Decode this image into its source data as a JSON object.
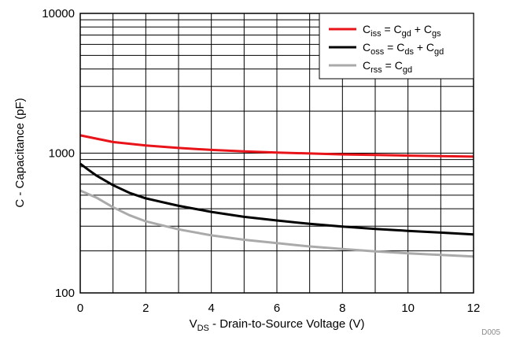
{
  "chart_data": {
    "type": "line",
    "title": "",
    "xlabel": {
      "main": "V",
      "sub": "DS",
      "rest": " - Drain-to-Source Voltage (V)"
    },
    "ylabel": "C - Capacitance (pF)",
    "xlim": [
      0,
      12
    ],
    "ylim": [
      100,
      10000
    ],
    "yscale": "log",
    "grid": true,
    "legend_position": "top-right",
    "x_ticks": [
      "0",
      "2",
      "4",
      "6",
      "8",
      "10",
      "12"
    ],
    "y_ticks": [
      "100",
      "1000",
      "10000"
    ],
    "figure_id": "D005",
    "series": [
      {
        "name": "Ciss = Cgd + Cgs",
        "legend": [
          [
            "C",
            ""
          ],
          [
            "iss",
            "sub"
          ],
          [
            " = C",
            ""
          ],
          [
            "gd",
            "sub"
          ],
          [
            " + C",
            ""
          ],
          [
            "gs",
            "sub"
          ]
        ],
        "color": "#e8141a",
        "points": [
          [
            0,
            1340
          ],
          [
            0.5,
            1270
          ],
          [
            1,
            1200
          ],
          [
            2,
            1135
          ],
          [
            3,
            1090
          ],
          [
            4,
            1055
          ],
          [
            5,
            1030
          ],
          [
            6,
            1010
          ],
          [
            7,
            995
          ],
          [
            8,
            980
          ],
          [
            9,
            970
          ],
          [
            10,
            960
          ],
          [
            11,
            952
          ],
          [
            12,
            945
          ]
        ]
      },
      {
        "name": "Coss = Cds + Cgd",
        "legend": [
          [
            "C",
            ""
          ],
          [
            "oss",
            "sub"
          ],
          [
            " = C",
            ""
          ],
          [
            "ds",
            "sub"
          ],
          [
            " + C",
            ""
          ],
          [
            "gd",
            "sub"
          ]
        ],
        "color": "#000000",
        "points": [
          [
            0,
            840
          ],
          [
            0.25,
            760
          ],
          [
            0.5,
            690
          ],
          [
            1,
            590
          ],
          [
            1.5,
            520
          ],
          [
            2,
            475
          ],
          [
            3,
            420
          ],
          [
            4,
            380
          ],
          [
            5,
            350
          ],
          [
            6,
            330
          ],
          [
            7,
            312
          ],
          [
            8,
            298
          ],
          [
            9,
            287
          ],
          [
            10,
            278
          ],
          [
            11,
            270
          ],
          [
            12,
            262
          ]
        ]
      },
      {
        "name": "Crss = Cgd",
        "legend": [
          [
            "C",
            ""
          ],
          [
            "rss",
            "sub"
          ],
          [
            " = C",
            ""
          ],
          [
            "gd",
            "sub"
          ]
        ],
        "color": "#aaaaaa",
        "points": [
          [
            0,
            540
          ],
          [
            0.5,
            480
          ],
          [
            1,
            410
          ],
          [
            1.5,
            360
          ],
          [
            2,
            325
          ],
          [
            3,
            285
          ],
          [
            4,
            258
          ],
          [
            5,
            240
          ],
          [
            6,
            227
          ],
          [
            7,
            215
          ],
          [
            8,
            206
          ],
          [
            9,
            198
          ],
          [
            10,
            192
          ],
          [
            11,
            187
          ],
          [
            12,
            182
          ]
        ]
      }
    ]
  }
}
